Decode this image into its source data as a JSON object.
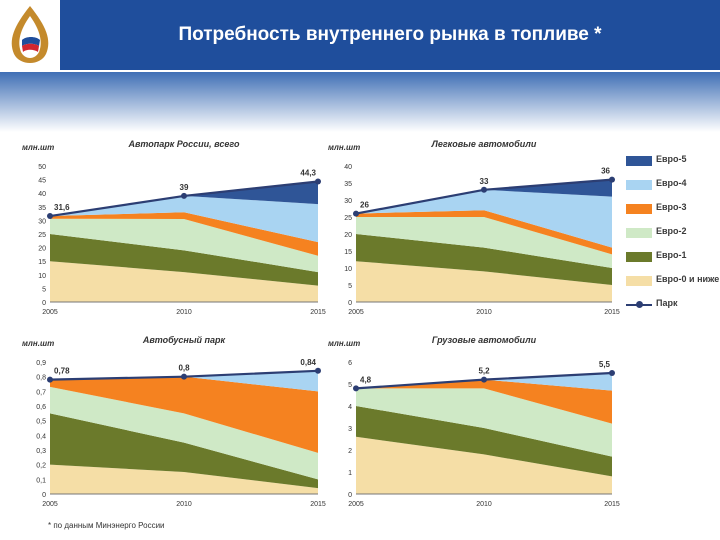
{
  "header": {
    "title": "Потребность внутреннего рынка в топливе *",
    "background": "#1f4e9c"
  },
  "footnote": "* по данным Минэнерго России",
  "legend": {
    "items": [
      {
        "label": "Евро-5",
        "color": "#2f5597"
      },
      {
        "label": "Евро-4",
        "color": "#a9d4f2"
      },
      {
        "label": "Евро-3",
        "color": "#f58220"
      },
      {
        "label": "Евро-2",
        "color": "#cfe9c6"
      },
      {
        "label": "Евро-1",
        "color": "#6b7a2b"
      },
      {
        "label": "Евро-0 и ниже",
        "color": "#f5dea6"
      },
      {
        "label": "Парк",
        "color": "#2c3e73"
      }
    ]
  },
  "chart_data": [
    {
      "type": "area",
      "title": "Автопарк России, всего",
      "ylabel": "млн.шт",
      "x": [
        "2005",
        "2010",
        "2015"
      ],
      "ylim": [
        0,
        50
      ],
      "yticks": [
        "0",
        "5",
        "10",
        "15",
        "20",
        "25",
        "30",
        "35",
        "40",
        "45",
        "50"
      ],
      "stack": [
        {
          "name": "Евро-0 и ниже",
          "values": [
            15,
            11,
            6
          ]
        },
        {
          "name": "Евро-1",
          "values": [
            10,
            8,
            5
          ]
        },
        {
          "name": "Евро-2",
          "values": [
            5.6,
            11.5,
            6
          ]
        },
        {
          "name": "Евро-3",
          "values": [
            1,
            2.5,
            5
          ]
        },
        {
          "name": "Евро-4",
          "values": [
            0,
            6,
            14
          ]
        },
        {
          "name": "Евро-5",
          "values": [
            0,
            0,
            8.3
          ]
        }
      ],
      "park": {
        "name": "Парк",
        "values": [
          31.6,
          39,
          44.3
        ],
        "labels": [
          "31,6",
          "39",
          "44,3"
        ]
      }
    },
    {
      "type": "area",
      "title": "Легковые автомобили",
      "ylabel": "млн.шт",
      "x": [
        "2005",
        "2010",
        "2015"
      ],
      "ylim": [
        0,
        40
      ],
      "yticks": [
        "0",
        "5",
        "10",
        "15",
        "20",
        "25",
        "30",
        "35",
        "40"
      ],
      "stack": [
        {
          "name": "Евро-0 и ниже",
          "values": [
            12,
            9,
            5
          ]
        },
        {
          "name": "Евро-1",
          "values": [
            8,
            7,
            5
          ]
        },
        {
          "name": "Евро-2",
          "values": [
            5,
            9,
            4
          ]
        },
        {
          "name": "Евро-3",
          "values": [
            1,
            2,
            2
          ]
        },
        {
          "name": "Евро-4",
          "values": [
            0,
            6,
            15
          ]
        },
        {
          "name": "Евро-5",
          "values": [
            0,
            0,
            5
          ]
        }
      ],
      "park": {
        "name": "Парк",
        "values": [
          26,
          33,
          36
        ],
        "labels": [
          "26",
          "33",
          "36"
        ]
      }
    },
    {
      "type": "area",
      "title": "Автобусный парк",
      "ylabel": "млн.шт",
      "x": [
        "2005",
        "2010",
        "2015"
      ],
      "ylim": [
        0,
        0.9
      ],
      "yticks": [
        "0",
        "0,1",
        "0,2",
        "0,3",
        "0,4",
        "0,5",
        "0,6",
        "0,7",
        "0,8",
        "0,9"
      ],
      "stack": [
        {
          "name": "Евро-0 и ниже",
          "values": [
            0.2,
            0.15,
            0.04
          ]
        },
        {
          "name": "Евро-1",
          "values": [
            0.35,
            0.2,
            0.06
          ]
        },
        {
          "name": "Евро-2",
          "values": [
            0.18,
            0.2,
            0.18
          ]
        },
        {
          "name": "Евро-3",
          "values": [
            0.05,
            0.25,
            0.42
          ]
        },
        {
          "name": "Евро-4",
          "values": [
            0,
            0,
            0.14
          ]
        },
        {
          "name": "Евро-5",
          "values": [
            0,
            0,
            0
          ]
        }
      ],
      "park": {
        "name": "Парк",
        "values": [
          0.78,
          0.8,
          0.84
        ],
        "labels": [
          "0,78",
          "0,8",
          "0,84"
        ]
      }
    },
    {
      "type": "area",
      "title": "Грузовые автомобили",
      "ylabel": "млн.шт",
      "x": [
        "2005",
        "2010",
        "2015"
      ],
      "ylim": [
        0,
        6
      ],
      "yticks": [
        "0",
        "1",
        "2",
        "3",
        "4",
        "5",
        "6"
      ],
      "stack": [
        {
          "name": "Евро-0 и ниже",
          "values": [
            2.6,
            1.8,
            0.8
          ]
        },
        {
          "name": "Евро-1",
          "values": [
            1.4,
            1.2,
            0.9
          ]
        },
        {
          "name": "Евро-2",
          "values": [
            0.8,
            1.8,
            1.5
          ]
        },
        {
          "name": "Евро-3",
          "values": [
            0,
            0.4,
            1.5
          ]
        },
        {
          "name": "Евро-4",
          "values": [
            0,
            0,
            0.8
          ]
        },
        {
          "name": "Евро-5",
          "values": [
            0,
            0,
            0
          ]
        }
      ],
      "park": {
        "name": "Парк",
        "values": [
          4.8,
          5.2,
          5.5
        ],
        "labels": [
          "4,8",
          "5,2",
          "5,5"
        ]
      }
    }
  ]
}
